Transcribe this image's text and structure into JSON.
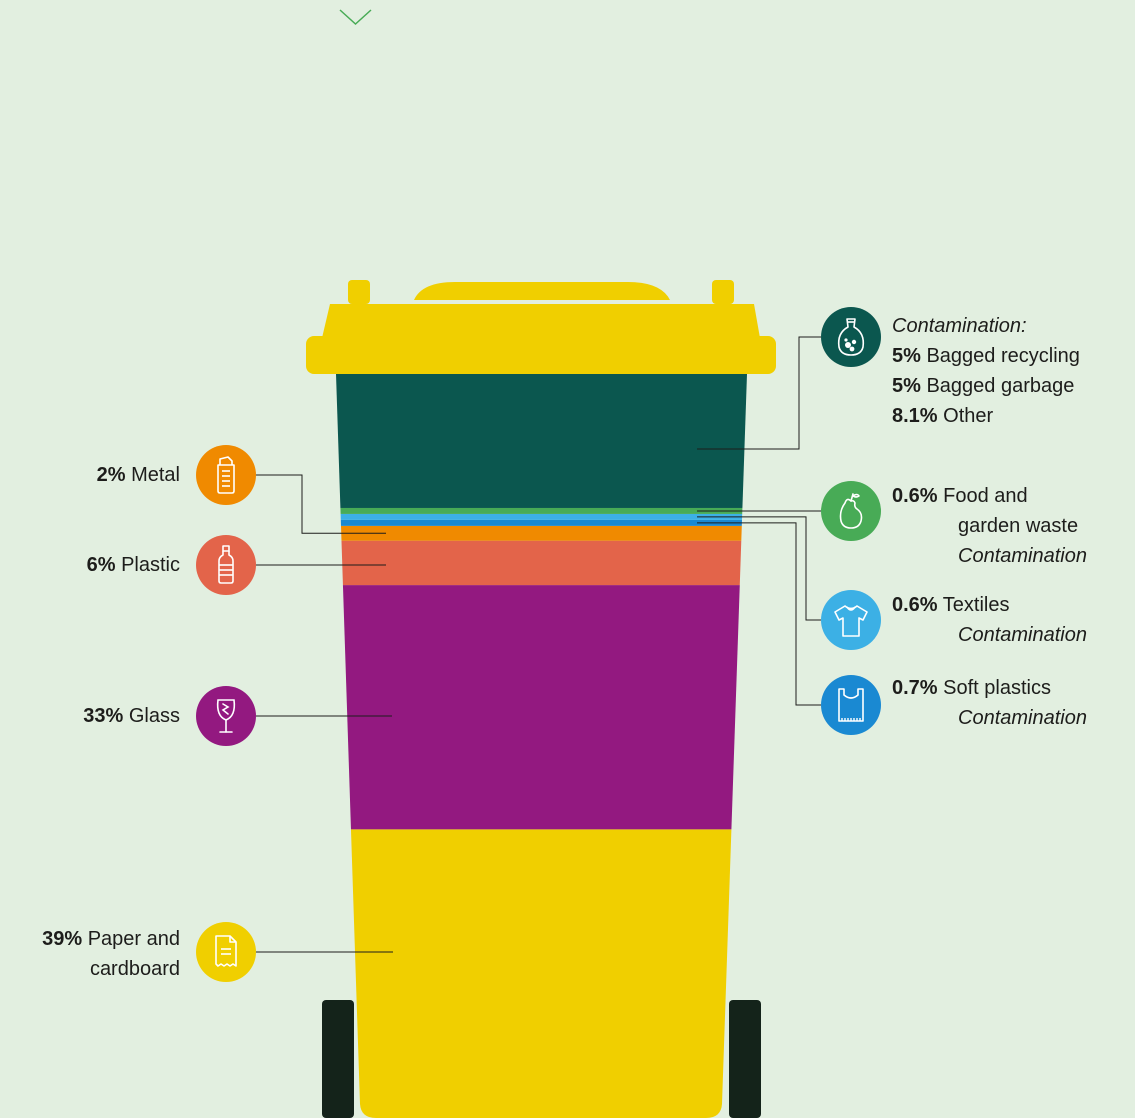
{
  "chart_data": {
    "type": "stacked-bar",
    "title": "",
    "unit": "%",
    "segments_bottom_to_top": [
      {
        "name": "Paper and cardboard",
        "value": 39,
        "color": "#f0cf00",
        "icon": "paper-icon"
      },
      {
        "name": "Glass",
        "value": 33,
        "color": "#931980",
        "icon": "wine-glass-icon"
      },
      {
        "name": "Plastic",
        "value": 6,
        "color": "#e3644a",
        "icon": "bottle-icon"
      },
      {
        "name": "Metal",
        "value": 2,
        "color": "#f08a00",
        "icon": "can-icon"
      },
      {
        "name": "Soft plastics",
        "value": 0.7,
        "color": "#1a89d2",
        "icon": "plastic-bag-icon",
        "note": "Contamination"
      },
      {
        "name": "Textiles",
        "value": 0.6,
        "color": "#3cb0e5",
        "icon": "tshirt-icon",
        "note": "Contamination"
      },
      {
        "name": "Food and garden waste",
        "value": 0.6,
        "color": "#48ab56",
        "icon": "apple-icon",
        "note": "Contamination"
      },
      {
        "name": "Contamination",
        "color": "#0b574f",
        "icon": "bag-icon",
        "parts": [
          {
            "name": "Bagged recycling",
            "value": 5
          },
          {
            "name": "Bagged garbage",
            "value": 5
          },
          {
            "name": "Other",
            "value": 8.1
          }
        ]
      }
    ]
  },
  "labels": {
    "paper": {
      "pct": "39%",
      "line1": " Paper and",
      "line2": "cardboard"
    },
    "glass": {
      "pct": "33%",
      "text": " Glass"
    },
    "plastic": {
      "pct": "6%",
      "text": " Plastic"
    },
    "metal": {
      "pct": "2%",
      "text": " Metal"
    },
    "contamination": {
      "heading": "Contamination:",
      "rows": [
        {
          "pct": "5%",
          "text": " Bagged recycling"
        },
        {
          "pct": "5%",
          "text": " Bagged garbage"
        },
        {
          "pct": "8.1%",
          "text": " Other"
        }
      ]
    },
    "food": {
      "pct": "0.6%",
      "line1": " Food and",
      "line2": "garden waste",
      "note": "Contamination"
    },
    "textiles": {
      "pct": "0.6%",
      "text": " Textiles",
      "note": "Contamination"
    },
    "soft": {
      "pct": "0.7%",
      "text": " Soft plastics",
      "note": "Contamination"
    }
  },
  "colors": {
    "background": "#e2efe0",
    "bin_lid": "#f0cf00",
    "wheel": "#14231a",
    "scroll_chevron": "#48ab56"
  }
}
